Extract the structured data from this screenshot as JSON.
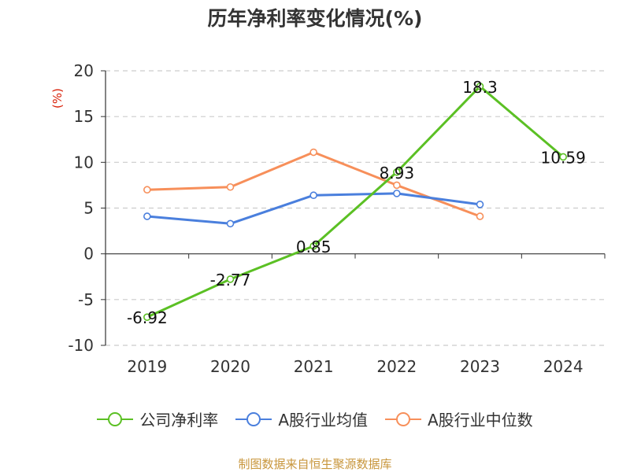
{
  "chart_data": {
    "type": "line",
    "title": "历年净利率变化情况(%)",
    "ylabel": "(%)",
    "categories": [
      "2019",
      "2020",
      "2021",
      "2022",
      "2023",
      "2024"
    ],
    "ylim": [
      -10,
      20
    ],
    "yticks": [
      20,
      15,
      10,
      5,
      0,
      -5,
      -10
    ],
    "grid": true,
    "legend_position": "bottom",
    "series": [
      {
        "name": "公司净利率",
        "color": "#5bc024",
        "values": [
          -6.92,
          -2.77,
          0.85,
          8.93,
          18.3,
          10.59
        ],
        "labels": [
          "-6.92",
          "-2.77",
          "0.85",
          "8.93",
          "18.3",
          "10.59"
        ]
      },
      {
        "name": "A股行业均值",
        "color": "#4a7fdd",
        "values": [
          4.1,
          3.3,
          6.4,
          6.6,
          5.4,
          null
        ]
      },
      {
        "name": "A股行业中位数",
        "color": "#f78f5a",
        "values": [
          7.0,
          7.3,
          11.1,
          7.5,
          4.1,
          null
        ]
      }
    ]
  },
  "source_text": "制图数据来自恒生聚源数据库"
}
